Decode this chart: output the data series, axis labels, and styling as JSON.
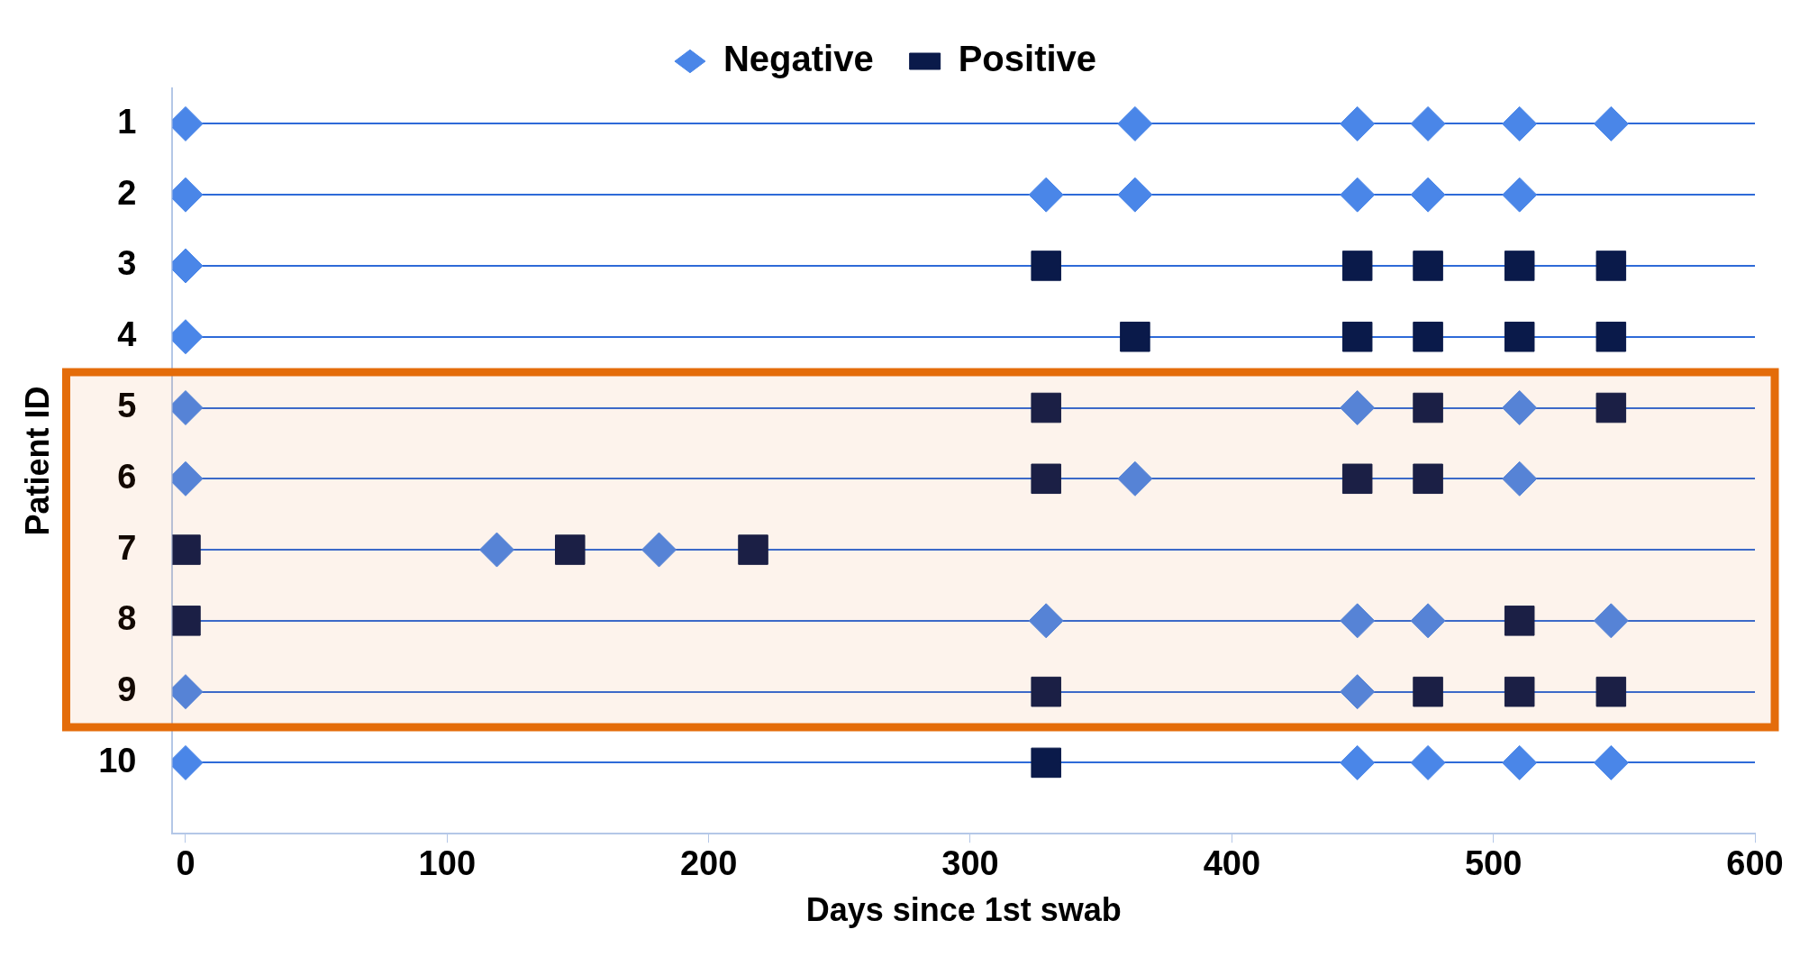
{
  "chart_data": {
    "type": "scatter",
    "xlabel": "Days since 1st swab",
    "ylabel": "Patient ID",
    "xlim": [
      -5,
      600
    ],
    "xticks": [
      0,
      100,
      200,
      300,
      400,
      500,
      600
    ],
    "ylim": [
      11,
      0.5
    ],
    "yticks": [
      1,
      2,
      3,
      4,
      5,
      6,
      7,
      8,
      9,
      10
    ],
    "grid": "y",
    "legend": "top",
    "bands": [
      {
        "axis": "y",
        "from": 4.5,
        "to": 9.5,
        "color": "#e46c0a"
      }
    ],
    "series": [
      {
        "name": "Negative",
        "color": "#4a86e8",
        "marker": "diamond",
        "x": [
          0,
          363,
          448,
          475,
          510,
          545,
          0,
          329,
          363,
          448,
          475,
          510,
          0,
          0,
          0,
          448,
          510,
          0,
          363,
          510,
          119,
          181,
          329,
          448,
          475,
          545,
          0,
          448,
          0,
          448,
          475,
          510,
          545
        ],
        "values": [
          1,
          1,
          1,
          1,
          1,
          1,
          2,
          2,
          2,
          2,
          2,
          2,
          3,
          4,
          5,
          5,
          5,
          6,
          6,
          6,
          7,
          7,
          8,
          8,
          8,
          8,
          9,
          9,
          10,
          10,
          10,
          10,
          10
        ]
      },
      {
        "name": "Positive",
        "color": "#0a1a4a",
        "marker": "square",
        "x": [
          329,
          448,
          475,
          510,
          545,
          363,
          448,
          475,
          510,
          545,
          329,
          475,
          545,
          329,
          448,
          475,
          0,
          147,
          217,
          0,
          510,
          329,
          475,
          510,
          545,
          329
        ],
        "values": [
          3,
          3,
          3,
          3,
          3,
          4,
          4,
          4,
          4,
          4,
          5,
          5,
          5,
          6,
          6,
          6,
          7,
          7,
          7,
          8,
          8,
          9,
          9,
          9,
          9,
          10
        ]
      }
    ]
  }
}
